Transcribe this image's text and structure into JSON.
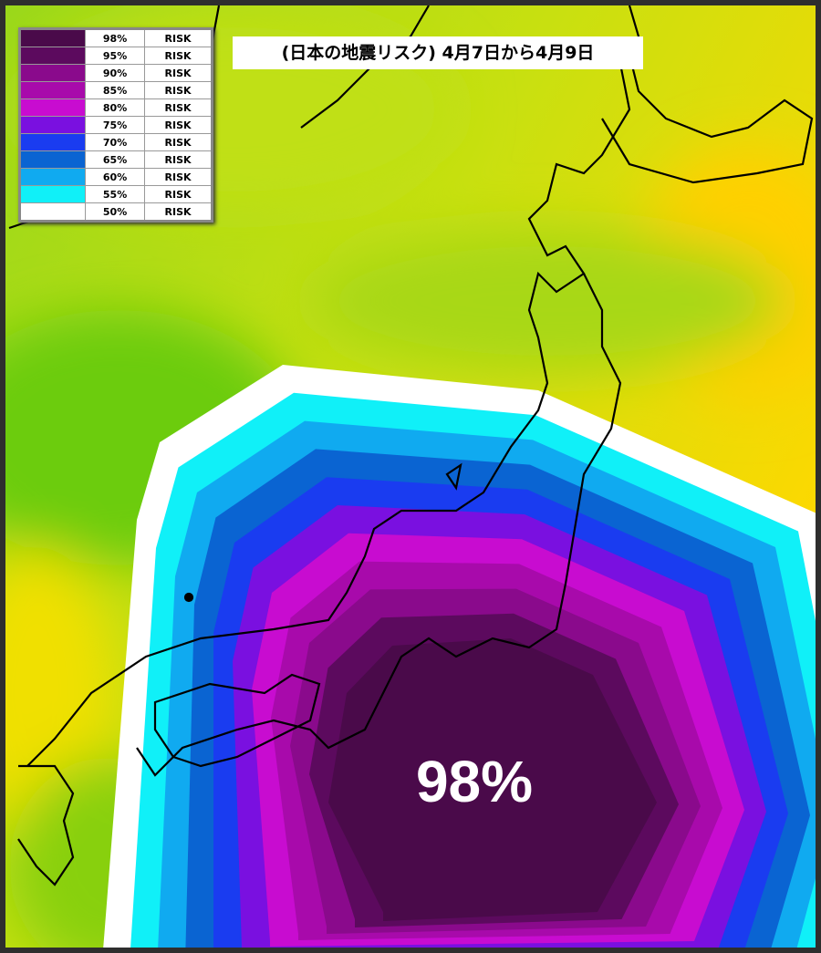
{
  "header": {
    "title": "(日本の地震リスク) 4月7日から4月9日"
  },
  "legend": {
    "rows": [
      {
        "color": "#4a0a4a",
        "level": "98%",
        "text": "RISK"
      },
      {
        "color": "#5c0a5e",
        "level": "95%",
        "text": "RISK"
      },
      {
        "color": "#8a0a8c",
        "level": "90%",
        "text": "RISK"
      },
      {
        "color": "#a80aab",
        "level": "85%",
        "text": "RISK"
      },
      {
        "color": "#c80cd0",
        "level": "80%",
        "text": "RISK"
      },
      {
        "color": "#7a10e0",
        "level": "75%",
        "text": "RISK"
      },
      {
        "color": "#1a3cf0",
        "level": "70%",
        "text": "RISK"
      },
      {
        "color": "#0a64d2",
        "level": "65%",
        "text": "RISK"
      },
      {
        "color": "#10aaf0",
        "level": "60%",
        "text": "RISK"
      },
      {
        "color": "#10f0f8",
        "level": "55%",
        "text": "RISK"
      },
      {
        "color": "#ffffff",
        "level": "50%",
        "text": "RISK"
      }
    ]
  },
  "map": {
    "peak_label": "98%"
  }
}
